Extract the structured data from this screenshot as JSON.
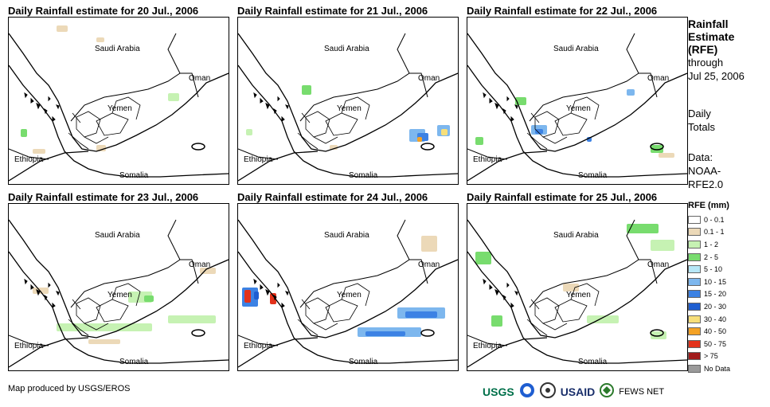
{
  "panels": [
    {
      "title": "Daily Rainfall estimate for 20 Jul., 2006",
      "rain": "low"
    },
    {
      "title": "Daily Rainfall estimate for 21 Jul., 2006",
      "rain": "east"
    },
    {
      "title": "Daily Rainfall estimate for 22 Jul., 2006",
      "rain": "mid"
    },
    {
      "title": "Daily Rainfall estimate for 23 Jul., 2006",
      "rain": "band"
    },
    {
      "title": "Daily Rainfall estimate for 24 Jul., 2006",
      "rain": "westband"
    },
    {
      "title": "Daily Rainfall estimate for 25 Jul., 2006",
      "rain": "north"
    }
  ],
  "place_labels": {
    "saudi": "Saudi Arabia",
    "oman": "Oman",
    "yemen": "Yemen",
    "ethiopia": "Ethiopia",
    "somalia": "Somalia"
  },
  "side": {
    "title1": "Rainfall",
    "title2": "Estimate",
    "title3": "(RFE)",
    "through": "through",
    "date": "Jul 25, 2006",
    "daily1": "Daily",
    "daily2": "Totals",
    "data1": "Data:",
    "data2": "NOAA-",
    "data3": "RFE2.0"
  },
  "legend": {
    "title": "RFE (mm)",
    "items": [
      {
        "label": "0 - 0.1",
        "color": "#ffffff"
      },
      {
        "label": "0.1 - 1",
        "color": "#ecd9b8"
      },
      {
        "label": "1 - 2",
        "color": "#c6f2b3"
      },
      {
        "label": "2 - 5",
        "color": "#78dc6e"
      },
      {
        "label": "5 - 10",
        "color": "#b6e7f7"
      },
      {
        "label": "10 - 15",
        "color": "#7db7ee"
      },
      {
        "label": "15 - 20",
        "color": "#3c82e4"
      },
      {
        "label": "20 - 30",
        "color": "#1f5ed1"
      },
      {
        "label": "30 - 40",
        "color": "#f7df7a"
      },
      {
        "label": "40 - 50",
        "color": "#f4a225"
      },
      {
        "label": "50 - 75",
        "color": "#e3321b"
      },
      {
        "label": "> 75",
        "color": "#a11c1c"
      },
      {
        "label": "No Data",
        "color": "#9a9a9a"
      }
    ]
  },
  "footer": "Map produced by USGS/EROS",
  "logos": {
    "usgs": "USGS",
    "usaid": "USAID",
    "fews": "FEWS NET"
  }
}
